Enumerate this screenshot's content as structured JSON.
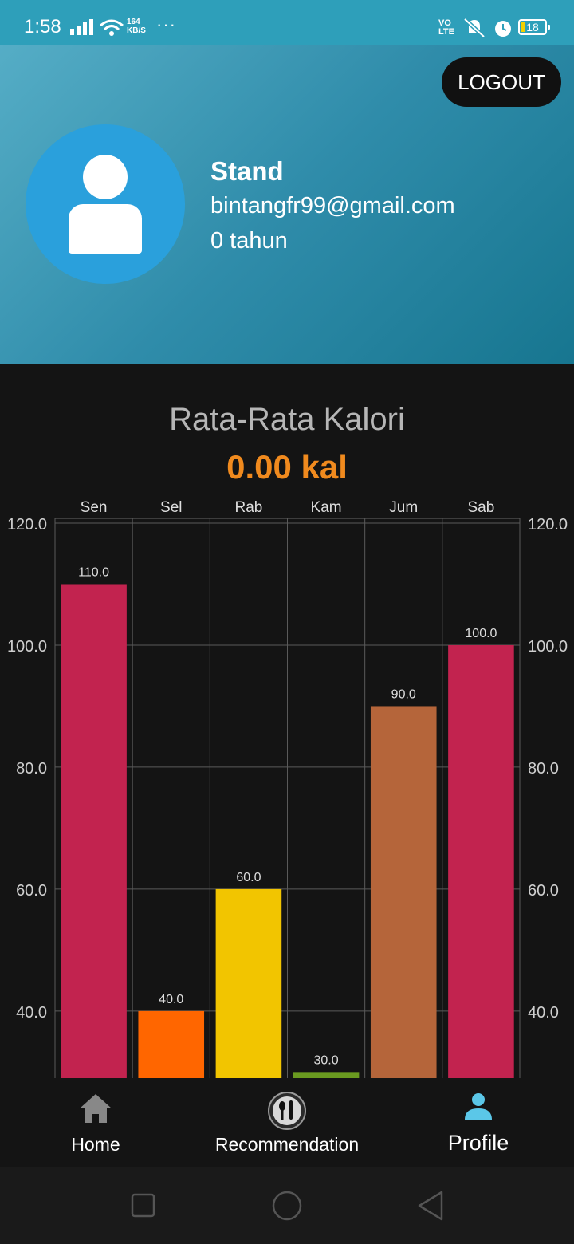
{
  "status_bar": {
    "time": "1:58",
    "speed_value": "164",
    "speed_unit": "KB/S",
    "volte_top": "VO",
    "volte_bottom": "LTE",
    "battery": "18"
  },
  "header": {
    "logout_label": "LOGOUT",
    "name": "Stand",
    "email": "bintangfr99@gmail.com",
    "age": "0 tahun"
  },
  "summary": {
    "title": "Rata-Rata Kalori",
    "value": "0.00 kal"
  },
  "chart_data": {
    "type": "bar",
    "categories": [
      "Sen",
      "Sel",
      "Rab",
      "Kam",
      "Jum",
      "Sab"
    ],
    "values": [
      110.0,
      40.0,
      60.0,
      30.0,
      90.0,
      100.0
    ],
    "value_labels": [
      "110.0",
      "40.0",
      "60.0",
      "30.0",
      "90.0",
      "100.0"
    ],
    "colors": [
      "#c2234f",
      "#ff6600",
      "#f2c500",
      "#6a9a20",
      "#b5653a",
      "#c2234f"
    ],
    "ylim": [
      29,
      120
    ],
    "yticks": [
      40,
      60,
      80,
      100,
      120
    ],
    "ytick_labels": [
      "40.0",
      "60.0",
      "80.0",
      "100.0",
      "120.0"
    ],
    "grid": true,
    "axes": "left-and-right",
    "title": "",
    "xlabel": "",
    "ylabel": ""
  },
  "bottom_nav": {
    "items": [
      {
        "label": "Home",
        "icon": "home-icon"
      },
      {
        "label": "Recommendation",
        "icon": "food-icon"
      },
      {
        "label": "Profile",
        "icon": "person-icon",
        "active": true
      }
    ]
  },
  "colors": {
    "accent": "#5bc7e8",
    "orange": "#f08a1e"
  }
}
